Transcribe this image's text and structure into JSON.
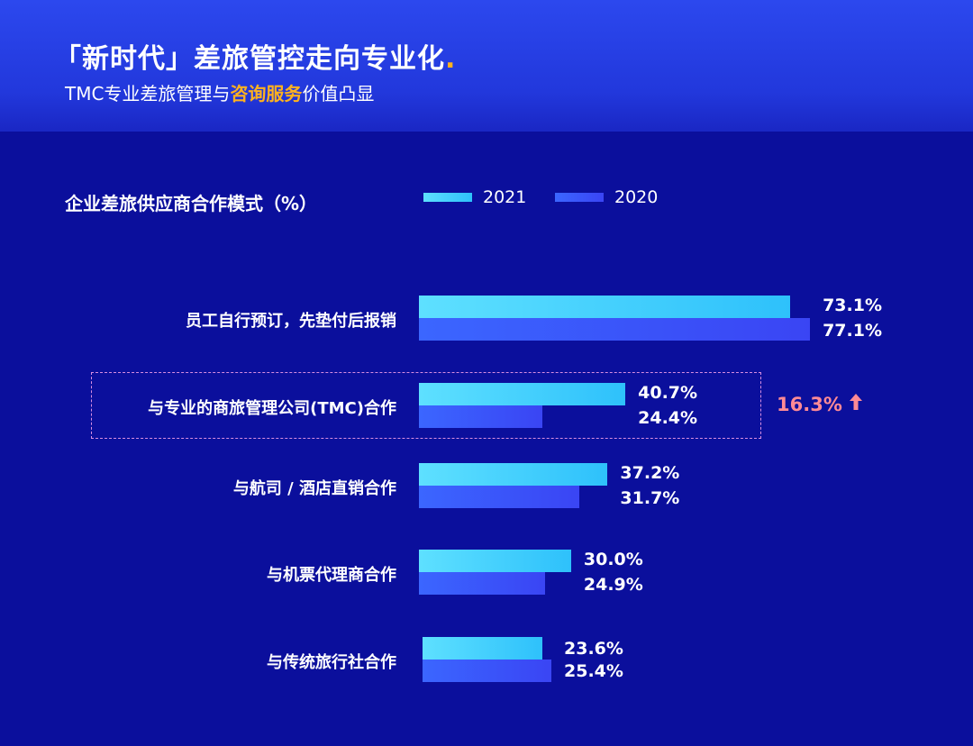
{
  "header": {
    "title": "「新时代」差旅管控走向专业化",
    "title_dot": ".",
    "subtitle_pre": "TMC专业差旅管理与",
    "subtitle_highlight": "咨询服务",
    "subtitle_post": "价值凸显"
  },
  "colors": {
    "bar_2021": "#2ec1fb",
    "bar_2020": "#3a45f4",
    "highlight": "#ffb21e",
    "delta": "#ff8a95",
    "background": "#0b0f9c"
  },
  "chart_data": {
    "type": "bar",
    "orientation": "horizontal",
    "title": "企业差旅供应商合作模式（%）",
    "categories": [
      "员工自行预订，先垫付后报销",
      "与专业的商旅管理公司(TMC)合作",
      "与航司 / 酒店直销合作",
      "与机票代理商合作",
      "与传统旅行社合作"
    ],
    "series": [
      {
        "name": "2021",
        "values": [
          73.1,
          40.7,
          37.2,
          30.0,
          23.6
        ],
        "labels": [
          "73.1%",
          "40.7%",
          "37.2%",
          "30.0%",
          "23.6%"
        ]
      },
      {
        "name": "2020",
        "values": [
          77.1,
          24.4,
          31.7,
          24.9,
          25.4
        ],
        "labels": [
          "77.1%",
          "24.4%",
          "31.7%",
          "24.9%",
          "25.4%"
        ]
      }
    ],
    "legend": "top",
    "annotation": {
      "category_index": 1,
      "text": "16.3%",
      "icon": "arrow-up-icon"
    }
  }
}
